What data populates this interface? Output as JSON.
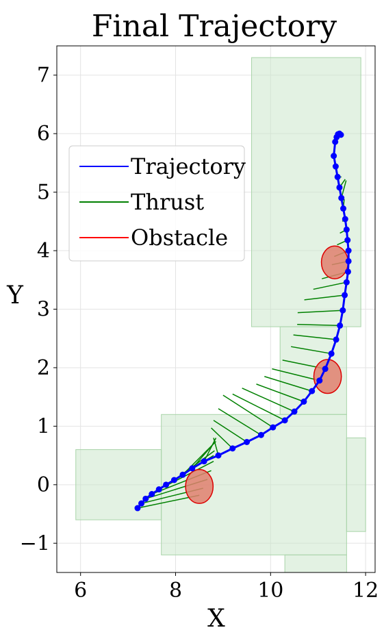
{
  "chart_data": {
    "type": "line",
    "title": "Final Trajectory",
    "xlabel": "X",
    "ylabel": "Y",
    "xlim": [
      5.5,
      12.2
    ],
    "ylim": [
      -1.5,
      7.5
    ],
    "xticks": [
      6,
      8,
      10,
      12
    ],
    "yticks": [
      -1,
      0,
      1,
      2,
      3,
      4,
      5,
      6,
      7
    ],
    "xtick_labels": [
      "6",
      "8",
      "10",
      "12"
    ],
    "ytick_labels": [
      "−1",
      "0",
      "1",
      "2",
      "3",
      "4",
      "5",
      "6",
      "7"
    ],
    "grid": true,
    "legend": {
      "placement": "upper-left",
      "entries": [
        {
          "label": "Trajectory",
          "color": "#0000ff"
        },
        {
          "label": "Thrust",
          "color": "#008000"
        },
        {
          "label": "Obstacle",
          "color": "#ff0000"
        }
      ]
    },
    "colors": {
      "trajectory": "#0000ff",
      "thrust": "#008000",
      "obstacle_edge": "#dd0000",
      "obstacle_fill": "#e0806e",
      "region_fill": "#c8e6c8",
      "region_edge": "#a8d4a8"
    },
    "regions": [
      {
        "x": [
          9.6,
          11.9
        ],
        "y": [
          2.7,
          7.3
        ]
      },
      {
        "x": [
          10.2,
          11.6
        ],
        "y": [
          1.2,
          2.7
        ]
      },
      {
        "x": [
          7.7,
          11.6
        ],
        "y": [
          -1.2,
          1.2
        ]
      },
      {
        "x": [
          5.9,
          7.7
        ],
        "y": [
          -0.6,
          0.6
        ]
      },
      {
        "x": [
          11.6,
          12.0
        ],
        "y": [
          -0.8,
          0.8
        ]
      },
      {
        "x": [
          10.3,
          11.6
        ],
        "y": [
          -1.5,
          -1.2
        ]
      }
    ],
    "obstacles": [
      {
        "x": 11.35,
        "y": 3.8,
        "r": 0.28
      },
      {
        "x": 11.2,
        "y": 1.85,
        "r": 0.29
      },
      {
        "x": 8.5,
        "y": -0.03,
        "r": 0.29
      }
    ],
    "trajectory": {
      "x": [
        7.2,
        7.28,
        7.37,
        7.5,
        7.65,
        7.8,
        7.97,
        8.15,
        8.35,
        8.6,
        8.9,
        9.2,
        9.5,
        9.8,
        10.05,
        10.3,
        10.5,
        10.7,
        10.87,
        11.03,
        11.15,
        11.28,
        11.38,
        11.46,
        11.52,
        11.56,
        11.6,
        11.63,
        11.64,
        11.64,
        11.62,
        11.6,
        11.57,
        11.53,
        11.49,
        11.45,
        11.41,
        11.37,
        11.33
      ],
      "y": [
        -0.4,
        -0.32,
        -0.24,
        -0.16,
        -0.08,
        0.0,
        0.08,
        0.17,
        0.28,
        0.4,
        0.5,
        0.62,
        0.73,
        0.85,
        0.98,
        1.1,
        1.25,
        1.42,
        1.6,
        1.78,
        1.98,
        2.24,
        2.48,
        2.72,
        2.98,
        3.24,
        3.46,
        3.64,
        3.82,
        4.0,
        4.18,
        4.36,
        4.54,
        4.72,
        4.9,
        5.08,
        5.26,
        5.44,
        5.62
      ]
    },
    "trajectory_tail": {
      "x": [
        11.36,
        11.39,
        11.42,
        11.45,
        11.48
      ],
      "y": [
        5.86,
        5.94,
        5.99,
        6.0,
        5.98
      ]
    },
    "thrust_vectors": [
      {
        "x": 7.2,
        "y": -0.4,
        "dx": 1.3,
        "dy": 0.22
      },
      {
        "x": 7.28,
        "y": -0.32,
        "dx": 1.3,
        "dy": 0.26
      },
      {
        "x": 7.37,
        "y": -0.24,
        "dx": 1.3,
        "dy": 0.33
      },
      {
        "x": 7.5,
        "y": -0.16,
        "dx": 1.25,
        "dy": 0.4
      },
      {
        "x": 7.65,
        "y": -0.08,
        "dx": 1.15,
        "dy": 0.48
      },
      {
        "x": 7.8,
        "y": 0.0,
        "dx": 1.0,
        "dy": 0.5
      },
      {
        "x": 7.97,
        "y": 0.08,
        "dx": 0.85,
        "dy": 0.5
      },
      {
        "x": 8.15,
        "y": 0.17,
        "dx": 0.7,
        "dy": 0.57
      },
      {
        "x": 8.35,
        "y": 0.28,
        "dx": 0.45,
        "dy": 0.42
      },
      {
        "x": 8.6,
        "y": 0.4,
        "dx": 0.25,
        "dy": 0.4
      },
      {
        "x": 8.9,
        "y": 0.5,
        "dx": -0.1,
        "dy": 0.3
      },
      {
        "x": 9.2,
        "y": 0.62,
        "dx": -0.45,
        "dy": 0.35
      },
      {
        "x": 9.5,
        "y": 0.73,
        "dx": -0.7,
        "dy": 0.37
      },
      {
        "x": 9.8,
        "y": 0.85,
        "dx": -0.9,
        "dy": 0.45
      },
      {
        "x": 10.05,
        "y": 0.98,
        "dx": -1.05,
        "dy": 0.55
      },
      {
        "x": 10.3,
        "y": 1.1,
        "dx": -1.1,
        "dy": 0.45
      },
      {
        "x": 10.5,
        "y": 1.25,
        "dx": -1.1,
        "dy": 0.4
      },
      {
        "x": 10.7,
        "y": 1.42,
        "dx": -1.0,
        "dy": 0.3
      },
      {
        "x": 10.87,
        "y": 1.6,
        "dx": -1.0,
        "dy": 0.25
      },
      {
        "x": 11.03,
        "y": 1.78,
        "dx": -1.0,
        "dy": 0.2
      },
      {
        "x": 11.15,
        "y": 1.98,
        "dx": -0.9,
        "dy": 0.15
      },
      {
        "x": 11.28,
        "y": 2.24,
        "dx": -0.85,
        "dy": 0.12
      },
      {
        "x": 11.38,
        "y": 2.48,
        "dx": -0.9,
        "dy": 0.08
      },
      {
        "x": 11.46,
        "y": 2.72,
        "dx": -0.9,
        "dy": 0.02
      },
      {
        "x": 11.52,
        "y": 2.98,
        "dx": -0.95,
        "dy": -0.04
      },
      {
        "x": 11.56,
        "y": 3.24,
        "dx": -0.85,
        "dy": -0.08
      },
      {
        "x": 11.6,
        "y": 3.46,
        "dx": -0.7,
        "dy": -0.12
      },
      {
        "x": 11.63,
        "y": 3.64,
        "dx": -0.55,
        "dy": -0.12
      },
      {
        "x": 11.64,
        "y": 3.82,
        "dx": -0.35,
        "dy": -0.06
      },
      {
        "x": 11.64,
        "y": 4.0,
        "dx": -0.3,
        "dy": -0.1
      },
      {
        "x": 11.62,
        "y": 4.18,
        "dx": -0.22,
        "dy": -0.08
      },
      {
        "x": 11.6,
        "y": 4.36,
        "dx": -0.14,
        "dy": -0.06
      },
      {
        "x": 11.57,
        "y": 4.54,
        "dx": -0.06,
        "dy": -0.04
      },
      {
        "x": 11.53,
        "y": 4.72,
        "dx": 0.02,
        "dy": 0.16
      },
      {
        "x": 11.49,
        "y": 4.9,
        "dx": 0.1,
        "dy": 0.3
      },
      {
        "x": 11.45,
        "y": 5.08,
        "dx": 0.12,
        "dy": 0.14
      },
      {
        "x": 11.41,
        "y": 5.26,
        "dx": 0.08,
        "dy": 0.0
      }
    ]
  }
}
